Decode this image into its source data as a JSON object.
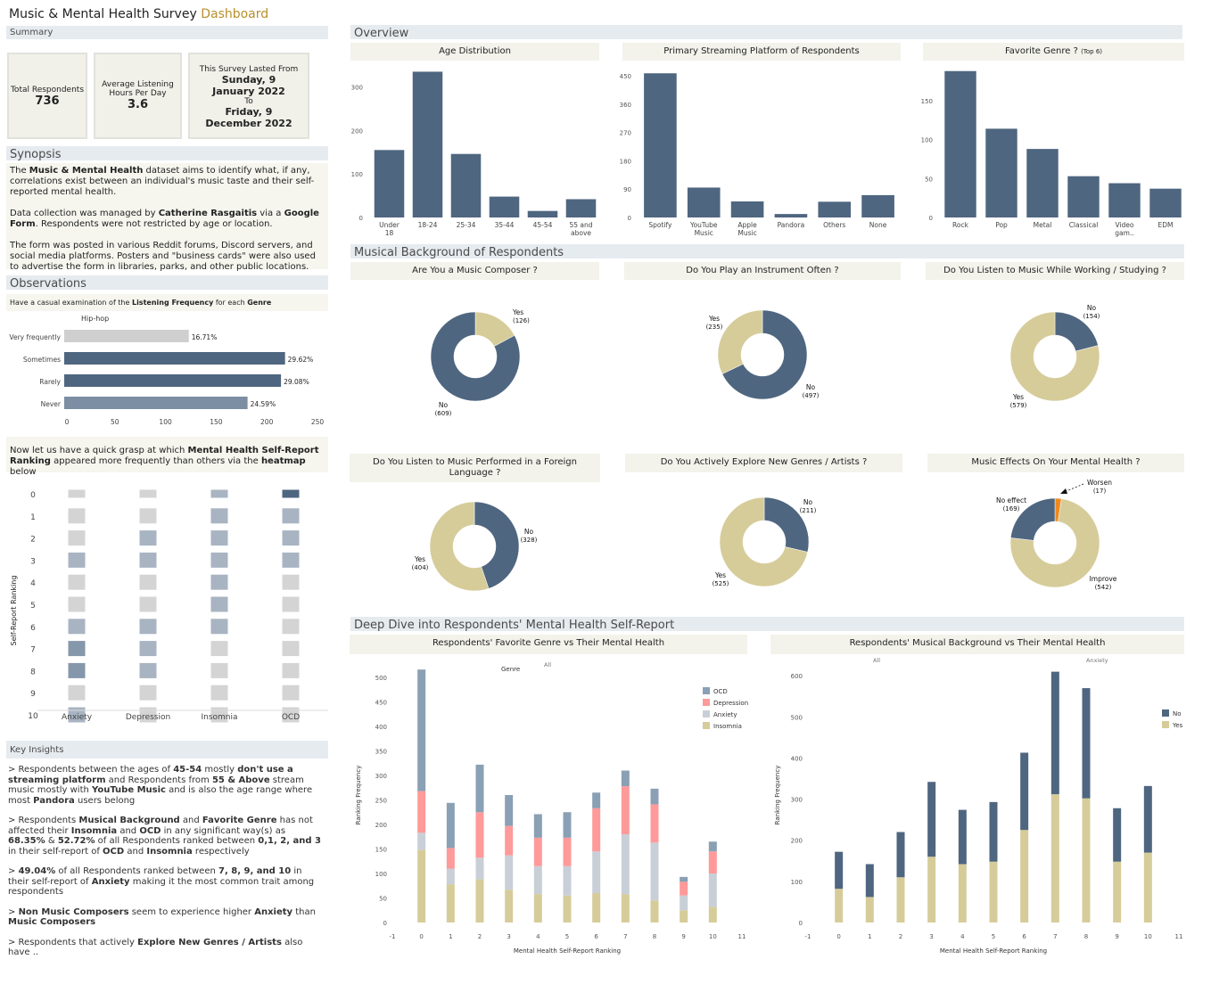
{
  "title": {
    "main": "Music & Mental Health Survey",
    "accent": "Dashboard"
  },
  "colors": {
    "navy": "#4f6680",
    "khaki": "#d6cc9a",
    "pink": "#ff9a9a",
    "lightgray": "#c9cfd7",
    "steel": "#8aa0b4",
    "orange": "#f08a1c",
    "sectionbg": "#e6ebf0",
    "panelbg": "#f3f3ec"
  },
  "summary": {
    "label": "Summary",
    "total_label": "Total Respondents",
    "total_value": "736",
    "avg_label": "Average Listening Hours Per Day",
    "avg_value": "3.6",
    "lasted_label": "This Survey Lasted From",
    "from_date": "Sunday, 9 January 2022",
    "to_label": "To",
    "to_date": "Friday, 9 December 2022"
  },
  "synopsis": {
    "label": "Synopsis",
    "p1a": "The ",
    "p1b": "Music & Mental Health",
    "p1c": " dataset aims to identify what, if any, correlations exist between an individual's music taste and their self-reported mental health.",
    "p2a": "Data collection was managed by ",
    "p2b": "Catherine Rasgaitis",
    "p2c": " via a ",
    "p2d": "Google Form",
    "p2e": ". Respondents were not restricted by age or location.",
    "p3": "The form was posted in various Reddit forums, Discord servers, and social media platforms. Posters and \"business cards\" were also used to advertise the form in libraries, parks, and other public locations."
  },
  "observations": {
    "label": "Observations",
    "intro_a": "Have a casual examination of the ",
    "intro_b": "Listening Frequency",
    "intro_c": " for each ",
    "intro_d": "Genre",
    "genre": "Hip-hop",
    "heatmap_intro_a": "Now let us have a quick grasp at which ",
    "heatmap_intro_b": "Mental Health Self-Report Ranking",
    "heatmap_intro_c": " appeared more frequently than others via the ",
    "heatmap_intro_d": "heatmap",
    "heatmap_intro_e": " below"
  },
  "key_insights": {
    "label": "Key Insights",
    "i1": [
      [
        "> Respondents between the ages of ",
        0
      ],
      [
        "45-54",
        1
      ],
      [
        " mostly ",
        0
      ],
      [
        "don't use a streaming platform",
        1
      ],
      [
        " and Respondents from ",
        0
      ],
      [
        "55 & Above",
        1
      ],
      [
        " stream music mostly with ",
        0
      ],
      [
        "YouTube Music",
        1
      ],
      [
        " and is also the age range where most ",
        0
      ],
      [
        "Pandora",
        1
      ],
      [
        " users belong",
        0
      ]
    ],
    "i2": [
      [
        "> Respondents ",
        0
      ],
      [
        "Musical Background",
        1
      ],
      [
        " and ",
        0
      ],
      [
        "Favorite Genre",
        1
      ],
      [
        " has not affected their ",
        0
      ],
      [
        "Insomnia",
        1
      ],
      [
        " and ",
        0
      ],
      [
        "OCD",
        1
      ],
      [
        " in any significant way(s) as ",
        0
      ],
      [
        "68.35%",
        1
      ],
      [
        " & ",
        0
      ],
      [
        "52.72%",
        1
      ],
      [
        " of all Respondents ranked between ",
        0
      ],
      [
        "0,1, 2, and 3",
        1
      ],
      [
        " in their self-report of ",
        0
      ],
      [
        "OCD",
        1
      ],
      [
        " and ",
        0
      ],
      [
        "Insomnia",
        1
      ],
      [
        " respectively",
        0
      ]
    ],
    "i3": [
      [
        "> ",
        0
      ],
      [
        "49.04%",
        1
      ],
      [
        " of all Respondents ranked between ",
        0
      ],
      [
        "7, 8, 9, and 10",
        1
      ],
      [
        " in their self-report of ",
        0
      ],
      [
        "Anxiety",
        1
      ],
      [
        " making it the most common trait among respondents",
        0
      ]
    ],
    "i4": [
      [
        "> ",
        0
      ],
      [
        "Non Music Composers",
        1
      ],
      [
        " seem to experience higher ",
        0
      ],
      [
        "Anxiety",
        1
      ],
      [
        " than ",
        0
      ],
      [
        "Music Composers",
        1
      ]
    ],
    "i5": [
      [
        "> Respondents that actively ",
        0
      ],
      [
        "Explore New Genres / Artists",
        1
      ],
      [
        " also have ..",
        0
      ]
    ]
  },
  "overview": {
    "label": "Overview"
  },
  "musical_background": {
    "label": "Musical Background of Respondents"
  },
  "deep_dive": {
    "label": "Deep Dive into Respondents' Mental Health Self-Report"
  },
  "chart_data": [
    {
      "id": "age",
      "type": "bar",
      "title": "Age Distribution",
      "categories": [
        "Under 18",
        "18-24",
        "25-34",
        "35-44",
        "45-54",
        "55 and above"
      ],
      "values": [
        155,
        335,
        146,
        48,
        15,
        42
      ],
      "ylim": [
        0,
        340
      ],
      "yticks": [
        0,
        100,
        200,
        300
      ]
    },
    {
      "id": "platform",
      "type": "bar",
      "title": "Primary Streaming Platform of Respondents",
      "categories": [
        "Spotify",
        "YouTube Music",
        "Apple Music",
        "Pandora",
        "Others",
        "None"
      ],
      "values": [
        458,
        95,
        51,
        11,
        50,
        71
      ],
      "ylim": [
        0,
        470
      ],
      "yticks": [
        0,
        90,
        180,
        270,
        360,
        450
      ]
    },
    {
      "id": "genre",
      "type": "bar",
      "title": "Favorite Genre ?",
      "title_note": "(Top 6)",
      "categories": [
        "Rock",
        "Pop",
        "Metal",
        "Classical",
        "Video gam..",
        "EDM"
      ],
      "values": [
        188,
        114,
        88,
        53,
        44,
        37
      ],
      "ylim": [
        0,
        190
      ],
      "yticks": [
        0,
        50,
        100,
        150
      ]
    },
    {
      "id": "frequency",
      "type": "bar",
      "orientation": "horizontal",
      "categories": [
        "Very frequently",
        "Sometimes",
        "Rarely",
        "Never"
      ],
      "values": [
        123,
        218,
        214,
        181
      ],
      "labels": [
        "16.71%",
        "29.62%",
        "29.08%",
        "24.59%"
      ],
      "xlim": [
        0,
        250
      ],
      "xticks": [
        0,
        50,
        100,
        150,
        200,
        250
      ]
    },
    {
      "id": "composer",
      "type": "pie",
      "title": "Are You a Music Composer ?",
      "slices": [
        {
          "label": "Yes",
          "value": 126
        },
        {
          "label": "No",
          "value": 609
        }
      ]
    },
    {
      "id": "instrument",
      "type": "pie",
      "title": "Do You Play an Instrument Often ?",
      "slices": [
        {
          "label": "No",
          "value": 497
        },
        {
          "label": "Yes",
          "value": 235
        }
      ]
    },
    {
      "id": "working",
      "type": "pie",
      "title": "Do You Listen to Music While Working / Studying ?",
      "slices": [
        {
          "label": "No",
          "value": 154
        },
        {
          "label": "Yes",
          "value": 579
        }
      ]
    },
    {
      "id": "foreign",
      "type": "pie",
      "title": "Do You Listen to Music Performed in a Foreign Language ?",
      "slices": [
        {
          "label": "No",
          "value": 328
        },
        {
          "label": "Yes",
          "value": 404
        }
      ]
    },
    {
      "id": "explore",
      "type": "pie",
      "title": "Do You Actively Explore New Genres / Artists ?",
      "slices": [
        {
          "label": "No",
          "value": 211
        },
        {
          "label": "Yes",
          "value": 525
        }
      ]
    },
    {
      "id": "effects",
      "type": "pie",
      "title": "Music Effects On Your Mental Health ?",
      "slices": [
        {
          "label": "Worsen",
          "value": 17
        },
        {
          "label": "Improve",
          "value": 542
        },
        {
          "label": "No effect",
          "value": 169
        }
      ]
    },
    {
      "id": "heatmap",
      "type": "heatmap",
      "ylabel": "Self-Report Ranking",
      "columns": [
        "Anxiety",
        "Depression",
        "Insomnia",
        "OCD"
      ],
      "rows": [
        "0",
        "1",
        "2",
        "3",
        "4",
        "5",
        "6",
        "7",
        "8",
        "9",
        "10"
      ],
      "levels": [
        [
          1,
          1,
          2,
          4
        ],
        [
          1,
          1,
          2,
          2
        ],
        [
          1,
          2,
          2,
          2
        ],
        [
          2,
          2,
          2,
          2
        ],
        [
          1,
          1,
          2,
          1
        ],
        [
          1,
          1,
          2,
          1
        ],
        [
          2,
          2,
          2,
          1
        ],
        [
          3,
          2,
          1,
          1
        ],
        [
          3,
          2,
          1,
          1
        ],
        [
          1,
          1,
          1,
          1
        ],
        [
          2,
          1,
          1,
          1
        ]
      ]
    },
    {
      "id": "genre_mh",
      "type": "bar",
      "stacked": true,
      "title": "Respondents' Favorite Genre vs Their Mental Health",
      "xlabel": "Mental Health Self-Report Ranking",
      "ylabel": "Ranking Frequency",
      "filter_label": "Genre",
      "filter_value": "All",
      "categories": [
        0,
        1,
        2,
        3,
        4,
        5,
        6,
        7,
        8,
        9,
        10
      ],
      "xticks": [
        -1,
        0,
        1,
        2,
        3,
        4,
        5,
        6,
        7,
        8,
        9,
        10,
        11
      ],
      "ylim": [
        0,
        520
      ],
      "yticks": [
        0,
        50,
        100,
        150,
        200,
        250,
        300,
        350,
        400,
        450,
        500
      ],
      "series": [
        {
          "name": "Insomnia",
          "values": [
            148,
            78,
            88,
            67,
            58,
            55,
            60,
            58,
            45,
            25,
            32
          ]
        },
        {
          "name": "Anxiety",
          "values": [
            35,
            32,
            44,
            70,
            57,
            60,
            85,
            122,
            118,
            30,
            68
          ]
        },
        {
          "name": "Depression",
          "values": [
            85,
            42,
            93,
            60,
            58,
            58,
            88,
            98,
            78,
            28,
            45
          ]
        },
        {
          "name": "OCD",
          "values": [
            248,
            92,
            97,
            63,
            48,
            52,
            32,
            32,
            32,
            10,
            20
          ]
        }
      ]
    },
    {
      "id": "bg_mh",
      "type": "bar",
      "stacked": true,
      "title": "Respondents' Musical Background vs Their Mental Health",
      "xlabel": "Mental Health Self-Report Ranking",
      "ylabel": "Ranking Frequency",
      "filter_label_1": "All",
      "filter_label_2": "Anxiety",
      "categories": [
        0,
        1,
        2,
        3,
        4,
        5,
        6,
        7,
        8,
        9,
        10
      ],
      "xticks": [
        -1,
        0,
        1,
        2,
        3,
        4,
        5,
        6,
        7,
        8,
        9,
        10,
        11
      ],
      "ylim": [
        0,
        620
      ],
      "yticks": [
        0,
        100,
        200,
        300,
        400,
        500,
        600
      ],
      "series": [
        {
          "name": "Yes",
          "values": [
            82,
            62,
            110,
            160,
            142,
            148,
            225,
            312,
            302,
            148,
            170
          ]
        },
        {
          "name": "No",
          "values": [
            90,
            80,
            110,
            182,
            132,
            145,
            188,
            298,
            268,
            130,
            162
          ]
        }
      ]
    }
  ]
}
